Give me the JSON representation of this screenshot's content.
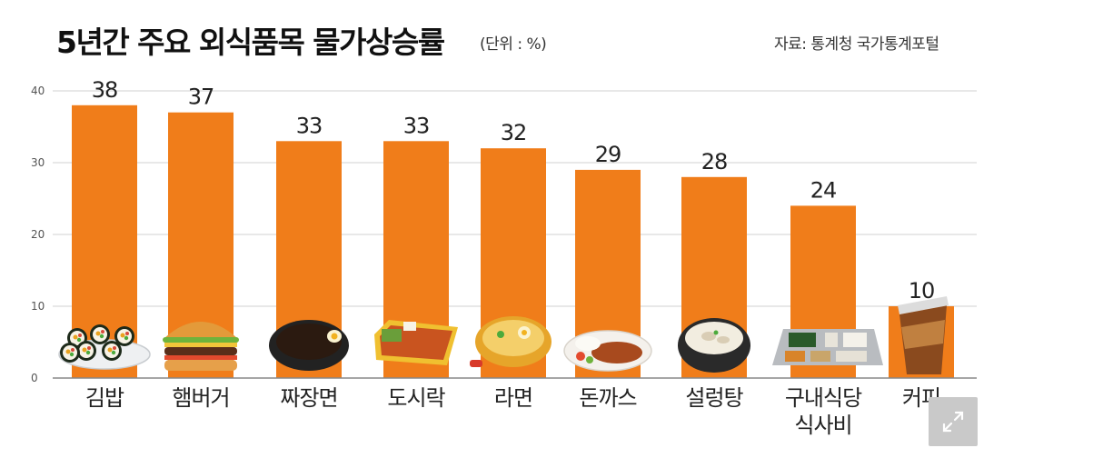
{
  "header": {
    "title": "5년간 주요 외식품목 물가상승률",
    "unit": "(단위 : %)",
    "source": "자료: 통계청 국가통계포털"
  },
  "colors": {
    "bar": "#f07d1a",
    "grid": "#d9d9d9",
    "axis": "#888888"
  },
  "chart_data": {
    "type": "bar",
    "title": "5년간 주요 외식품목 물가상승률",
    "unit": "%",
    "categories": [
      "김밥",
      "햄버거",
      "짜장면",
      "도시락",
      "라면",
      "돈까스",
      "설렁탕",
      "구내식당 식사비",
      "커피"
    ],
    "category_lines": [
      [
        "김밥"
      ],
      [
        "햄버거"
      ],
      [
        "짜장면"
      ],
      [
        "도시락"
      ],
      [
        "라면"
      ],
      [
        "돈까스"
      ],
      [
        "설렁탕"
      ],
      [
        "구내식당",
        "식사비"
      ],
      [
        "커피"
      ]
    ],
    "values": [
      38,
      37,
      33,
      33,
      32,
      29,
      28,
      24,
      10
    ],
    "yticks": [
      0,
      10,
      20,
      30,
      40
    ],
    "ylim": [
      0,
      40
    ],
    "grid": true,
    "legend": "none"
  },
  "icons": [
    "kimbap-icon",
    "hamburger-icon",
    "jjajangmyeon-icon",
    "dosirak-icon",
    "ramen-icon",
    "donkatsu-icon",
    "seolleongtang-icon",
    "cafeteria-tray-icon",
    "coffee-cup-icon"
  ]
}
